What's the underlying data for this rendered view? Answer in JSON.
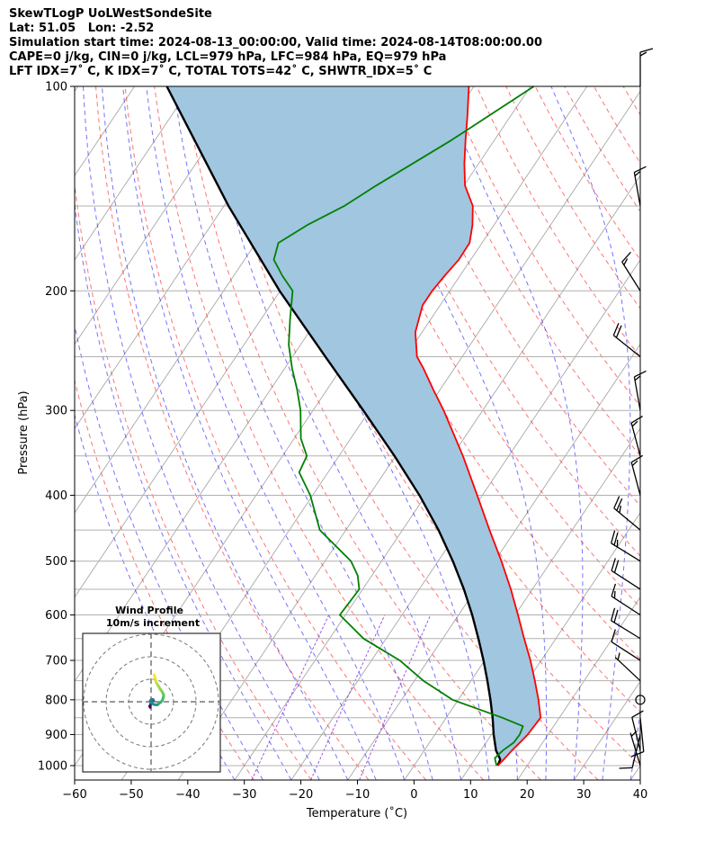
{
  "header": {
    "line1": "SkewTLogP UoLWestSondeSite",
    "line2": "Lat: 51.05   Lon: -2.52",
    "line3": "Simulation start time: 2024-08-13_00:00:00, Valid time: 2024-08-14T08:00:00.00",
    "line4": "CAPE=0 j/kg, CIN=0 j/kg, LCL=979 hPa, LFC=984 hPa, EQ=979 hPa",
    "line5": "LFT IDX=7˚ C, K IDX=7˚ C, TOTAL TOTS=42˚ C, SHWTR_IDX=5˚ C"
  },
  "chart_data": {
    "type": "line",
    "xlabel": "Temperature (˚C)",
    "ylabel": "Pressure (hPa)",
    "xlim": [
      -60,
      40
    ],
    "ylim": [
      1050,
      100
    ],
    "x_ticks": [
      "−60",
      "−50",
      "−40",
      "−30",
      "−20",
      "−10",
      "0",
      "10",
      "20",
      "30",
      "40"
    ],
    "y_ticks": [
      "100",
      "200",
      "300",
      "400",
      "500",
      "600",
      "700",
      "800",
      "900",
      "1000"
    ],
    "y_tick_values": [
      100,
      200,
      300,
      400,
      500,
      600,
      700,
      800,
      900,
      1000
    ],
    "y_grid_extra": [
      150,
      250,
      350,
      450,
      550,
      650,
      750,
      850,
      950,
      1050
    ],
    "skew_factor": 35,
    "colors": {
      "temperature": "#ff0000",
      "dewpoint": "#008000",
      "parcel": "#000000",
      "cape_fill": "#a1c6e0",
      "dry_adiabat": "#ff0000",
      "moist_adiabat": "#0000ff",
      "mixing_ratio": "#8a2be2",
      "isotherm": "#999999"
    },
    "series": [
      {
        "name": "Temperature",
        "p": [
          1000,
          975,
          950,
          925,
          900,
          850,
          800,
          750,
          700,
          650,
          600,
          550,
          500,
          450,
          400,
          350,
          300,
          280,
          260,
          250,
          230,
          210,
          200,
          190,
          180,
          170,
          160,
          150,
          140,
          130,
          120,
          110,
          100
        ],
        "t": [
          14.8,
          15.2,
          15.5,
          16.0,
          16.4,
          16.7,
          14.2,
          11.3,
          8.1,
          4.4,
          0.5,
          -3.8,
          -8.8,
          -14.6,
          -20.9,
          -28.1,
          -36.9,
          -41.1,
          -45.5,
          -48.0,
          -51.2,
          -53.1,
          -53.1,
          -52.7,
          -52.1,
          -52.2,
          -53.8,
          -56.0,
          -59.8,
          -62.5,
          -65.1,
          -67.8,
          -70.9
        ]
      },
      {
        "name": "Dewpoint",
        "p": [
          1000,
          975,
          950,
          925,
          900,
          875,
          850,
          800,
          750,
          700,
          650,
          600,
          550,
          525,
          500,
          450,
          400,
          370,
          350,
          330,
          300,
          280,
          260,
          240,
          220,
          210,
          200,
          190,
          180,
          170,
          160,
          150,
          140,
          120,
          100
        ],
        "t": [
          14.6,
          13.4,
          13.9,
          14.9,
          15.0,
          14.6,
          9.9,
          -1.0,
          -8.4,
          -15.0,
          -24.0,
          -31.0,
          -30.6,
          -32.5,
          -35.4,
          -44.6,
          -50.4,
          -55.1,
          -55.7,
          -58.8,
          -62.2,
          -65.2,
          -68.7,
          -72.1,
          -74.9,
          -76.3,
          -77.8,
          -81.4,
          -84.8,
          -86.0,
          -83.0,
          -78.7,
          -75.5,
          -67.6,
          -59.4
        ]
      },
      {
        "name": "Parcel",
        "p": [
          1000,
          979,
          950,
          900,
          850,
          800,
          750,
          700,
          650,
          600,
          550,
          500,
          450,
          400,
          350,
          300,
          250,
          200,
          150,
          100
        ],
        "t": [
          14.8,
          14.5,
          12.7,
          10.4,
          8.2,
          5.7,
          2.9,
          -0.2,
          -3.7,
          -7.6,
          -12.1,
          -17.4,
          -23.6,
          -31.1,
          -40.2,
          -51.1,
          -64.2,
          -80.1,
          -99.2,
          -124.3
        ]
      }
    ],
    "wind_barbs": {
      "p": [
        100,
        150,
        200,
        250,
        300,
        350,
        400,
        450,
        500,
        550,
        600,
        650,
        700,
        750,
        800,
        850,
        900,
        950,
        1000
      ],
      "u_kt": [
        0.0,
        2.7,
        9.1,
        14.4,
        2.8,
        3.9,
        4.3,
        19.1,
        20.3,
        14.7,
        11.4,
        15.6,
        7.6,
        4.9,
        0.0,
        -1.0,
        1.8,
        2.0,
        1.5
      ],
      "v_kt": [
        -15.0,
        -15.2,
        -14.4,
        -11.5,
        -15.9,
        -14.5,
        -16.1,
        -15.9,
        -12.5,
        -9.5,
        -7.4,
        -9.6,
        -4.9,
        -4.6,
        0.0,
        10.0,
        7.5,
        -8.0,
        -5.0
      ]
    },
    "inset": {
      "title": "Wind Profile",
      "subtitle": "10m/s increment",
      "ring_step_ms": 10,
      "hodograph": {
        "u": [
          -0.4,
          -0.6,
          -0.3,
          0.0,
          0.3,
          0.3,
          0.6,
          0.9,
          1.0,
          1.1,
          1.0,
          0.9,
          0.7,
          0.4,
          0.0,
          -0.3,
          -0.2,
          1.2,
          2.6,
          3.2,
          3.6,
          4.2,
          5.0,
          5.3,
          5.5,
          5.6,
          5.3,
          4.9,
          4.2,
          3.6,
          3.0,
          2.4,
          2.1,
          1.8,
          1.6,
          1.4
        ],
        "v": [
          -2.5,
          -2.0,
          -1.4,
          -0.8,
          -0.3,
          0.3,
          0.5,
          0.5,
          0.4,
          0.4,
          0.7,
          0.9,
          1.0,
          0.9,
          0.8,
          0.5,
          -0.3,
          -1.2,
          -1.4,
          -1.1,
          -0.6,
          -0.3,
          0.6,
          1.4,
          2.2,
          3.0,
          3.7,
          4.5,
          5.4,
          6.4,
          7.4,
          8.4,
          9.2,
          10.4,
          11.2,
          12.0
        ]
      }
    }
  }
}
